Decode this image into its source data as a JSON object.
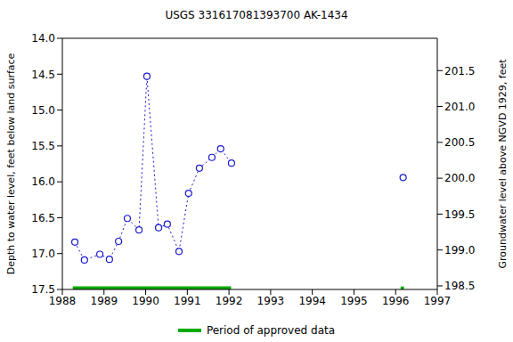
{
  "chart_data": {
    "type": "line",
    "title": "USGS 331617081393700 AK-1434",
    "y_label": "Depth to water level, feet below land surface",
    "y2_label": "Groundwater level above NGVD 1929, feet",
    "x": [
      1988.3,
      1988.53,
      1988.9,
      1989.13,
      1989.35,
      1989.56,
      1989.84,
      1990.03,
      1990.31,
      1990.52,
      1990.8,
      1991.03,
      1991.29,
      1991.59,
      1991.8,
      1992.06,
      1996.18
    ],
    "series": [
      {
        "name": "AK-1434",
        "color": "#1a1acc",
        "marker": "circle",
        "line_style": "dotted",
        "values": [
          16.84,
          17.09,
          17.01,
          17.08,
          16.83,
          16.51,
          16.67,
          14.53,
          16.64,
          16.59,
          16.97,
          16.16,
          15.81,
          15.66,
          15.54,
          15.74,
          15.94
        ]
      }
    ],
    "xlim": [
      1988,
      1997
    ],
    "xticks": [
      1988,
      1989,
      1990,
      1991,
      1992,
      1993,
      1994,
      1995,
      1996,
      1997
    ],
    "ylim": [
      14.0,
      17.5
    ],
    "yticks": [
      {
        "value": 14.0,
        "label": "14.0"
      },
      14.5,
      {
        "value": 15.0,
        "label": "15.0"
      },
      15.5,
      {
        "value": 16.0,
        "label": "16.0"
      },
      16.5,
      {
        "value": 17.0,
        "label": "17.0"
      },
      17.5
    ],
    "y2lim": [
      198.45,
      201.95
    ],
    "y2ticks": [
      198.5,
      {
        "value": 199.0,
        "label": "199.0"
      },
      199.5,
      {
        "value": 200.0,
        "label": "200.0"
      },
      200.5,
      {
        "value": 201.0,
        "label": "201.0"
      },
      201.5
    ],
    "approved_periods": {
      "name": "Period of approved data",
      "color": "#00aa00",
      "ranges": [
        [
          1988.25,
          1992.05
        ],
        [
          1996.12,
          1996.2
        ]
      ]
    },
    "grid": false
  }
}
